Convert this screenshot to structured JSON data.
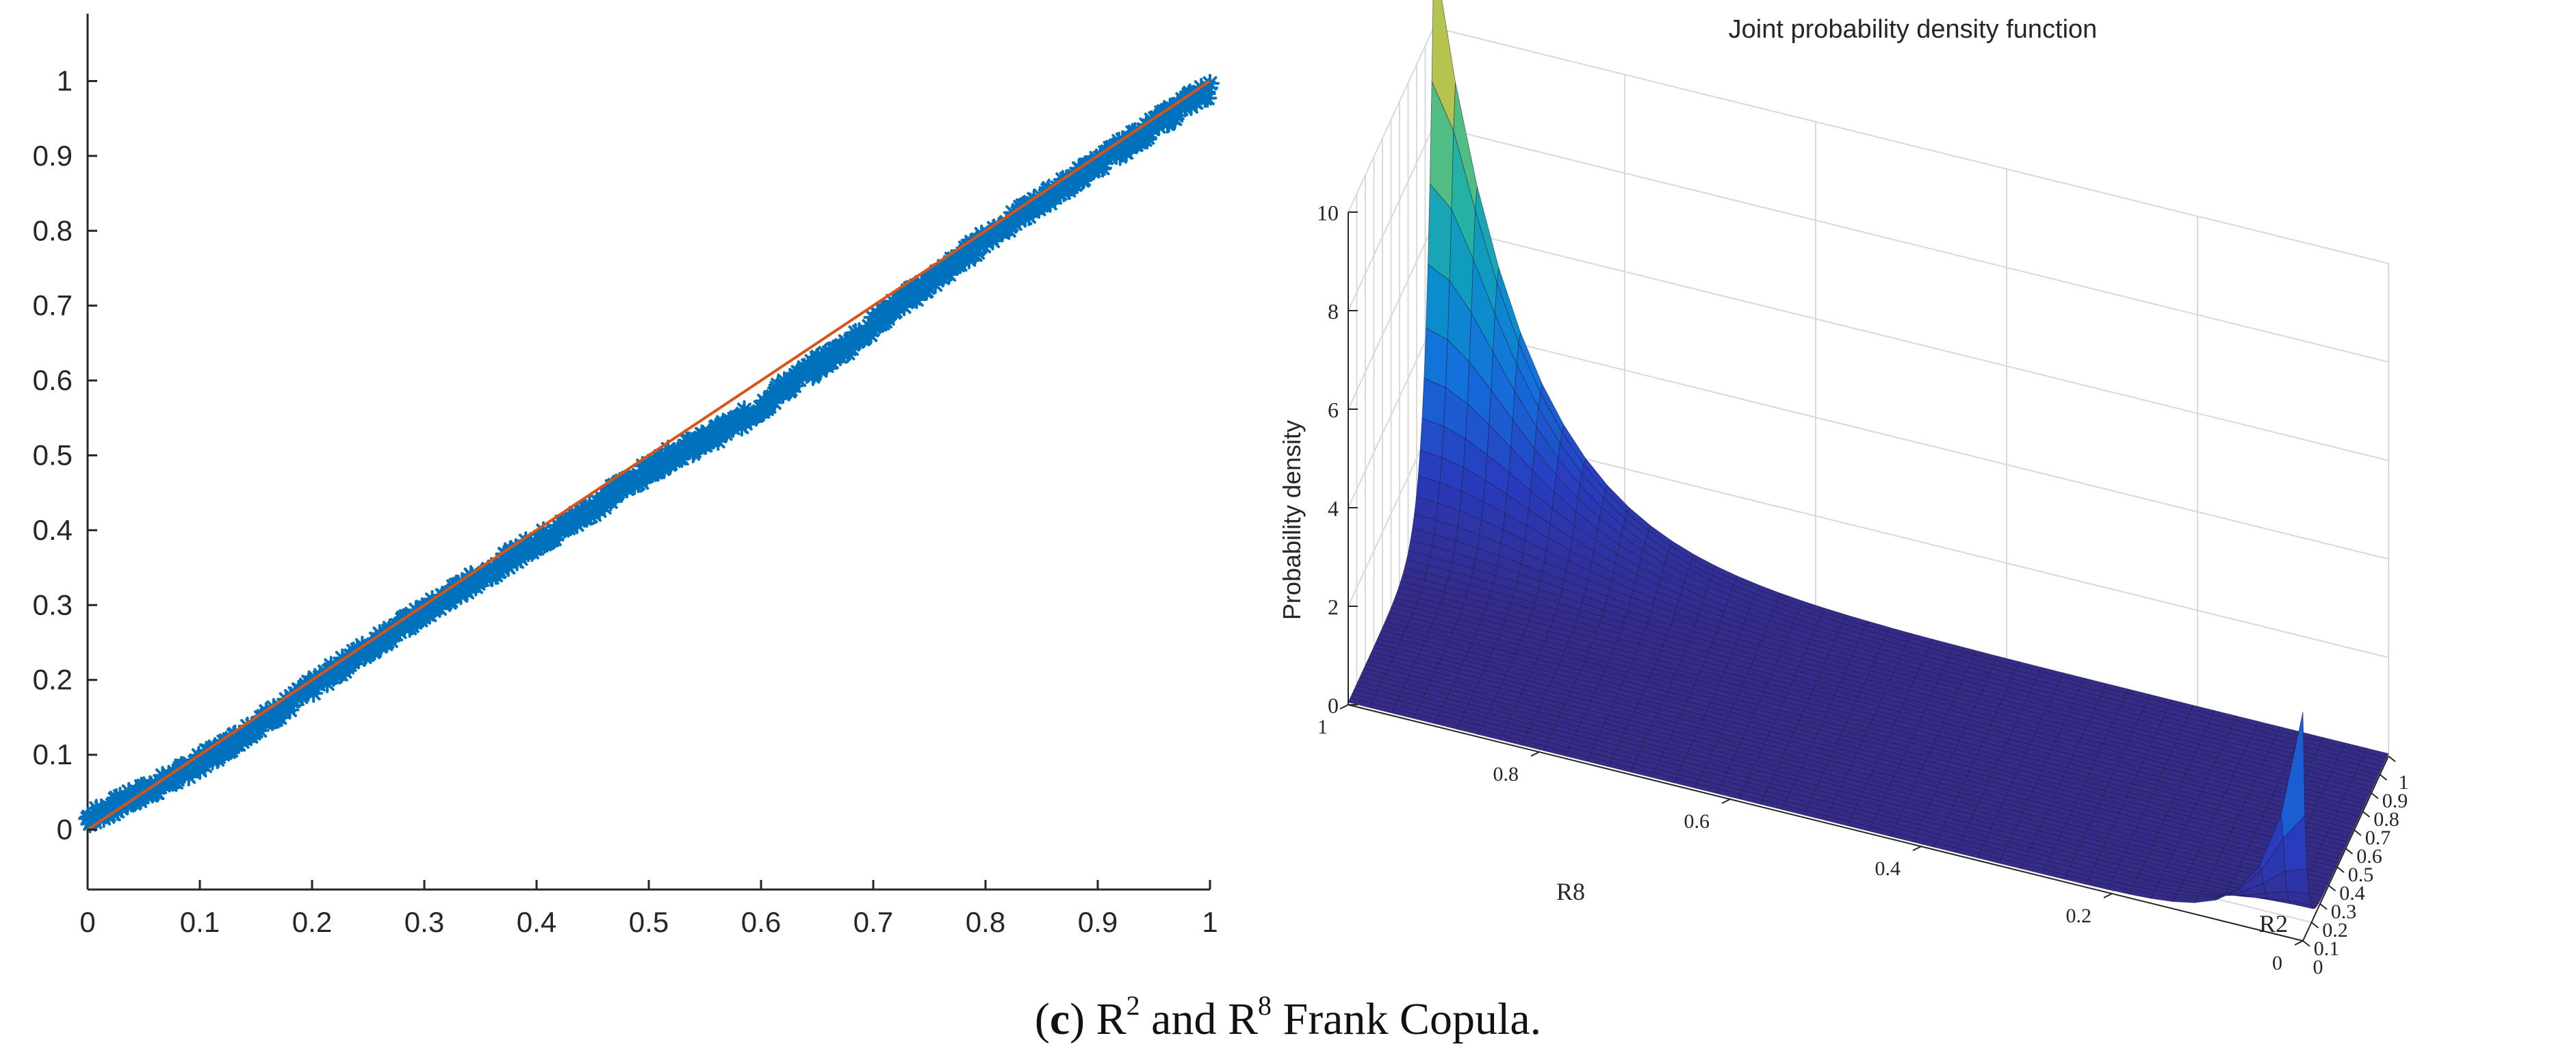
{
  "caption": {
    "prefix": "(",
    "letter": "c",
    "close_paren": ")",
    "r_symbol": "R",
    "sup1": "2",
    "middle": " and ",
    "sup2": "8",
    "suffix": " Frank Copula."
  },
  "chart_data": [
    {
      "type": "scatter",
      "title": "",
      "xlabel": "",
      "ylabel": "",
      "xlim": [
        0,
        1
      ],
      "ylim": [
        -0.08,
        1.09
      ],
      "x_ticks": [
        "0",
        "0.1",
        "0.2",
        "0.3",
        "0.4",
        "0.5",
        "0.6",
        "0.7",
        "0.8",
        "0.9",
        "1"
      ],
      "y_ticks": [
        "0",
        "0.1",
        "0.2",
        "0.3",
        "0.4",
        "0.5",
        "0.6",
        "0.7",
        "0.8",
        "0.9",
        "1"
      ],
      "grid": false,
      "marker": "*",
      "series": [
        {
          "kind": "scatter",
          "color": "#0072BD",
          "points": [
            [
              0.0,
              0.015
            ],
            [
              0.02,
              0.028
            ],
            [
              0.05,
              0.05
            ],
            [
              0.08,
              0.072
            ],
            [
              0.1,
              0.09
            ],
            [
              0.12,
              0.108
            ],
            [
              0.15,
              0.14
            ],
            [
              0.18,
              0.168
            ],
            [
              0.2,
              0.19
            ],
            [
              0.22,
              0.212
            ],
            [
              0.25,
              0.243
            ],
            [
              0.28,
              0.272
            ],
            [
              0.3,
              0.29
            ],
            [
              0.32,
              0.31
            ],
            [
              0.35,
              0.338
            ],
            [
              0.38,
              0.366
            ],
            [
              0.4,
              0.385
            ],
            [
              0.42,
              0.4
            ],
            [
              0.45,
              0.43
            ],
            [
              0.48,
              0.462
            ],
            [
              0.5,
              0.48
            ],
            [
              0.52,
              0.5
            ],
            [
              0.55,
              0.52
            ],
            [
              0.58,
              0.545
            ],
            [
              0.6,
              0.565
            ],
            [
              0.62,
              0.59
            ],
            [
              0.65,
              0.62
            ],
            [
              0.68,
              0.65
            ],
            [
              0.7,
              0.675
            ],
            [
              0.72,
              0.7
            ],
            [
              0.75,
              0.73
            ],
            [
              0.78,
              0.765
            ],
            [
              0.8,
              0.79
            ],
            [
              0.82,
              0.81
            ],
            [
              0.85,
              0.84
            ],
            [
              0.88,
              0.87
            ],
            [
              0.9,
              0.89
            ],
            [
              0.92,
              0.91
            ],
            [
              0.95,
              0.94
            ],
            [
              0.98,
              0.972
            ],
            [
              1.0,
              0.99
            ]
          ]
        },
        {
          "kind": "line",
          "color": "#D95319",
          "x": [
            0,
            1
          ],
          "y": [
            0,
            1
          ]
        }
      ]
    },
    {
      "type": "surface",
      "title": "Joint probability density function",
      "xlabel": "R2",
      "ylabel": "R8",
      "zlabel": "Probability density",
      "x_ticks": [
        "0",
        "0.1",
        "0.2",
        "0.3",
        "0.4",
        "0.5",
        "0.6",
        "0.7",
        "0.8",
        "0.9",
        "1"
      ],
      "y_ticks": [
        "0",
        "0.2",
        "0.4",
        "0.6",
        "0.8",
        "1"
      ],
      "z_ticks": [
        "0",
        "2",
        "4",
        "6",
        "8",
        "10"
      ],
      "xlim": [
        0,
        1
      ],
      "ylim": [
        0,
        1
      ],
      "zlim": [
        0,
        10
      ],
      "grid": true,
      "colormap": "parula",
      "peaks": [
        {
          "x": 1,
          "y": 1,
          "z": 11.5
        },
        {
          "x": 0,
          "y": 0,
          "z": 4.6
        }
      ]
    }
  ]
}
